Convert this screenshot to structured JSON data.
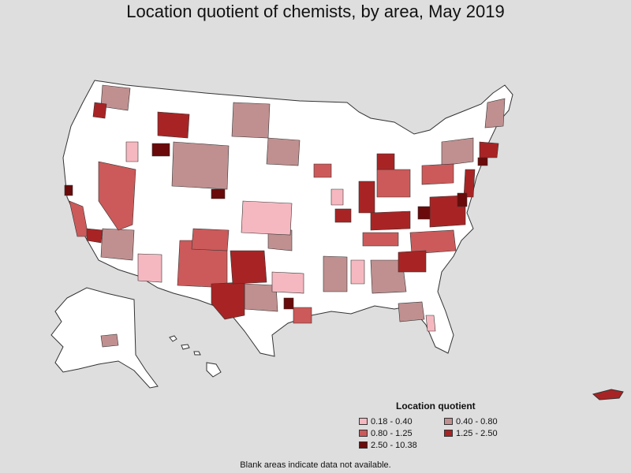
{
  "title": "Location quotient of chemists, by area, May 2019",
  "legend": {
    "title": "Location quotient",
    "items": [
      {
        "label": "0.18 - 0.40",
        "color": "#f6b8c0"
      },
      {
        "label": "0.40 - 0.80",
        "color": "#c09090"
      },
      {
        "label": "0.80 - 1.25",
        "color": "#cc5a5a"
      },
      {
        "label": "1.25 - 2.50",
        "color": "#a82424"
      },
      {
        "label": "2.50 - 10.38",
        "color": "#6a0a0a"
      }
    ]
  },
  "footnote": "Blank areas indicate data not available.",
  "colors": {
    "background": "#dedede",
    "no_data": "#ffffff",
    "border": "#333333"
  }
}
